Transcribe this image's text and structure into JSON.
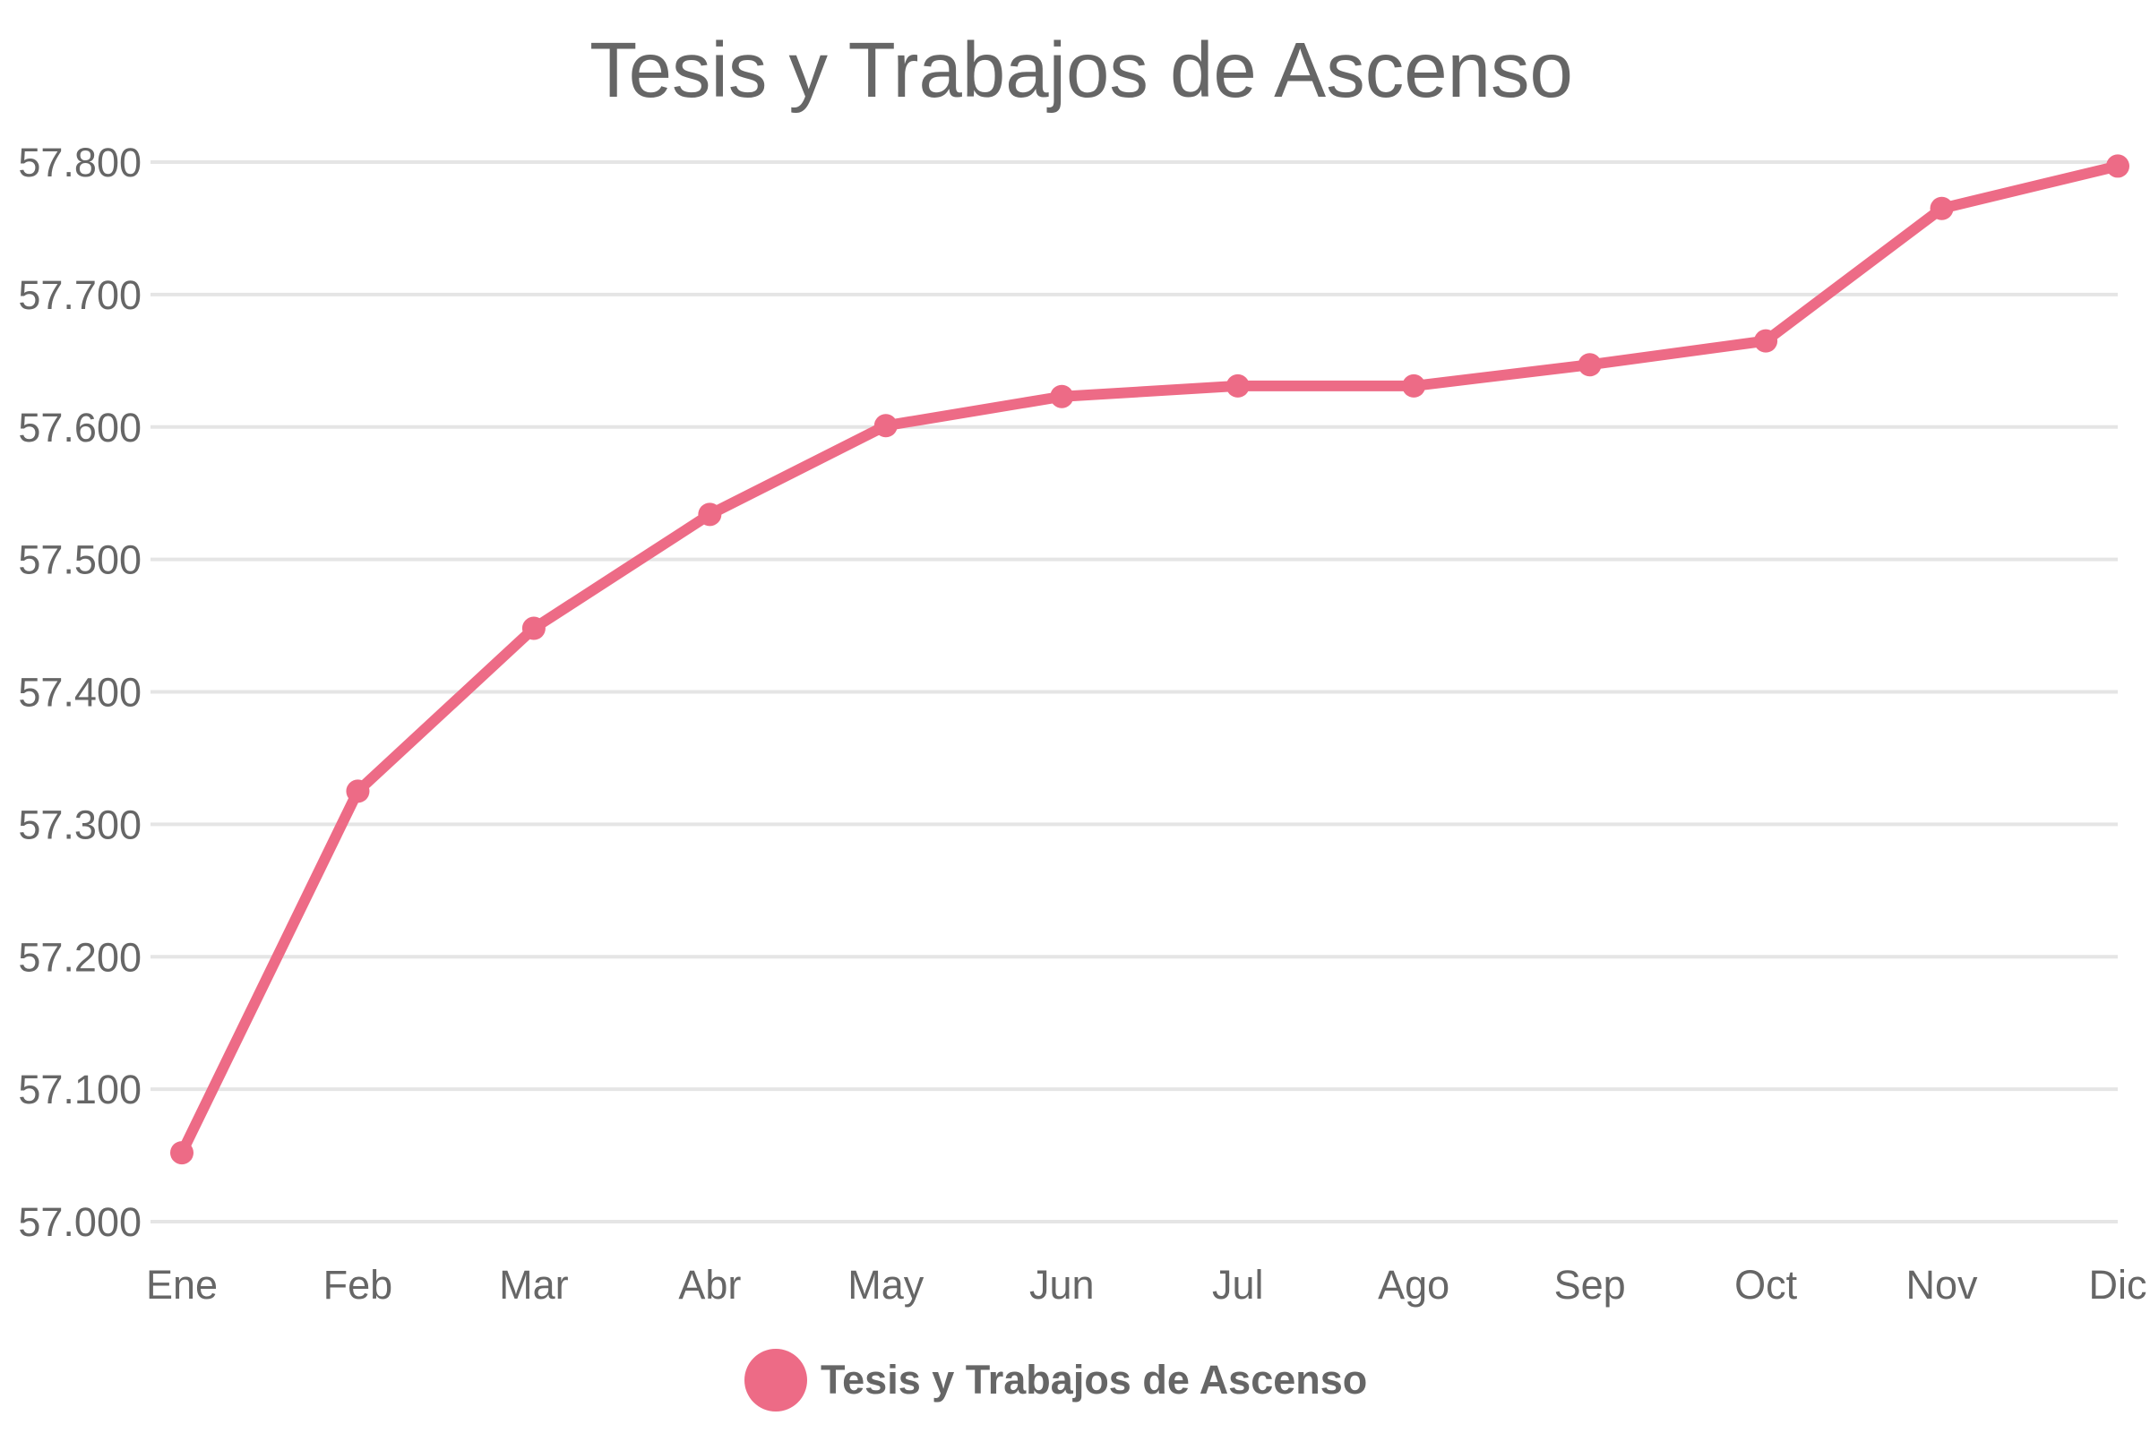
{
  "chart_data": {
    "type": "line",
    "title": "Tesis y Trabajos de Ascenso",
    "categories": [
      "Ene",
      "Feb",
      "Mar",
      "Abr",
      "May",
      "Jun",
      "Jul",
      "Ago",
      "Sep",
      "Oct",
      "Nov",
      "Dic"
    ],
    "series": [
      {
        "name": "Tesis y Trabajos de Ascenso",
        "values": [
          57052,
          57325,
          57448,
          57534,
          57601,
          57623,
          57631,
          57631,
          57647,
          57665,
          57765,
          57797
        ],
        "color": "#ed6b86"
      }
    ],
    "y_ticks": [
      "57.000",
      "57.100",
      "57.200",
      "57.300",
      "57.400",
      "57.500",
      "57.600",
      "57.700",
      "57.800"
    ],
    "ylim": [
      57000,
      57800
    ],
    "grid": true,
    "legend": "bottom-center",
    "colors": {
      "text": "#666666",
      "grid": "#e5e5e5",
      "series": "#ed6b86"
    }
  }
}
